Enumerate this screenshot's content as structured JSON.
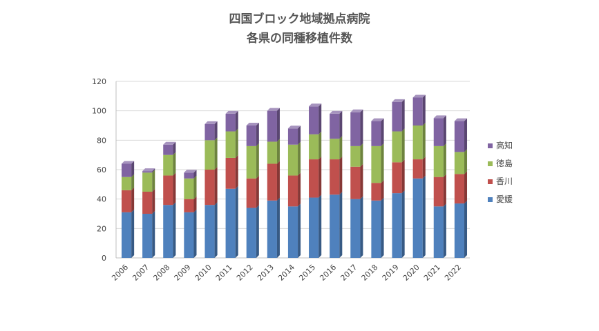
{
  "chart_data": {
    "type": "bar",
    "stacked": true,
    "title": "四国ブロック地域拠点病院",
    "subtitle": "各県の同種移植件数",
    "categories": [
      "2006",
      "2007",
      "2008",
      "2009",
      "2010",
      "2011",
      "2012",
      "2013",
      "2014",
      "2015",
      "2016",
      "2017",
      "2018",
      "2019",
      "2020",
      "2021",
      "2022"
    ],
    "series": [
      {
        "name": "愛媛",
        "color": "#4f81bd",
        "values": [
          31,
          30,
          36,
          31,
          36,
          47,
          34,
          39,
          35,
          41,
          43,
          40,
          39,
          44,
          54,
          35,
          37
        ]
      },
      {
        "name": "香川",
        "color": "#c0504d",
        "values": [
          15,
          15,
          20,
          9,
          24,
          21,
          20,
          25,
          21,
          26,
          24,
          22,
          12,
          21,
          13,
          20,
          20
        ]
      },
      {
        "name": "徳島",
        "color": "#9bbb59",
        "values": [
          9,
          13,
          14,
          14,
          20,
          18,
          22,
          15,
          21,
          17,
          14,
          14,
          25,
          21,
          23,
          21,
          15
        ]
      },
      {
        "name": "高知",
        "color": "#8064a2",
        "values": [
          9,
          1,
          7,
          4,
          11,
          12,
          14,
          21,
          11,
          19,
          17,
          23,
          17,
          20,
          19,
          19,
          21
        ]
      }
    ],
    "ylim": [
      0,
      120
    ],
    "yticks": [
      0,
      20,
      40,
      60,
      80,
      100,
      120
    ],
    "grid": true,
    "legend_position": "right",
    "legend_order": [
      "高知",
      "徳島",
      "香川",
      "愛媛"
    ]
  }
}
